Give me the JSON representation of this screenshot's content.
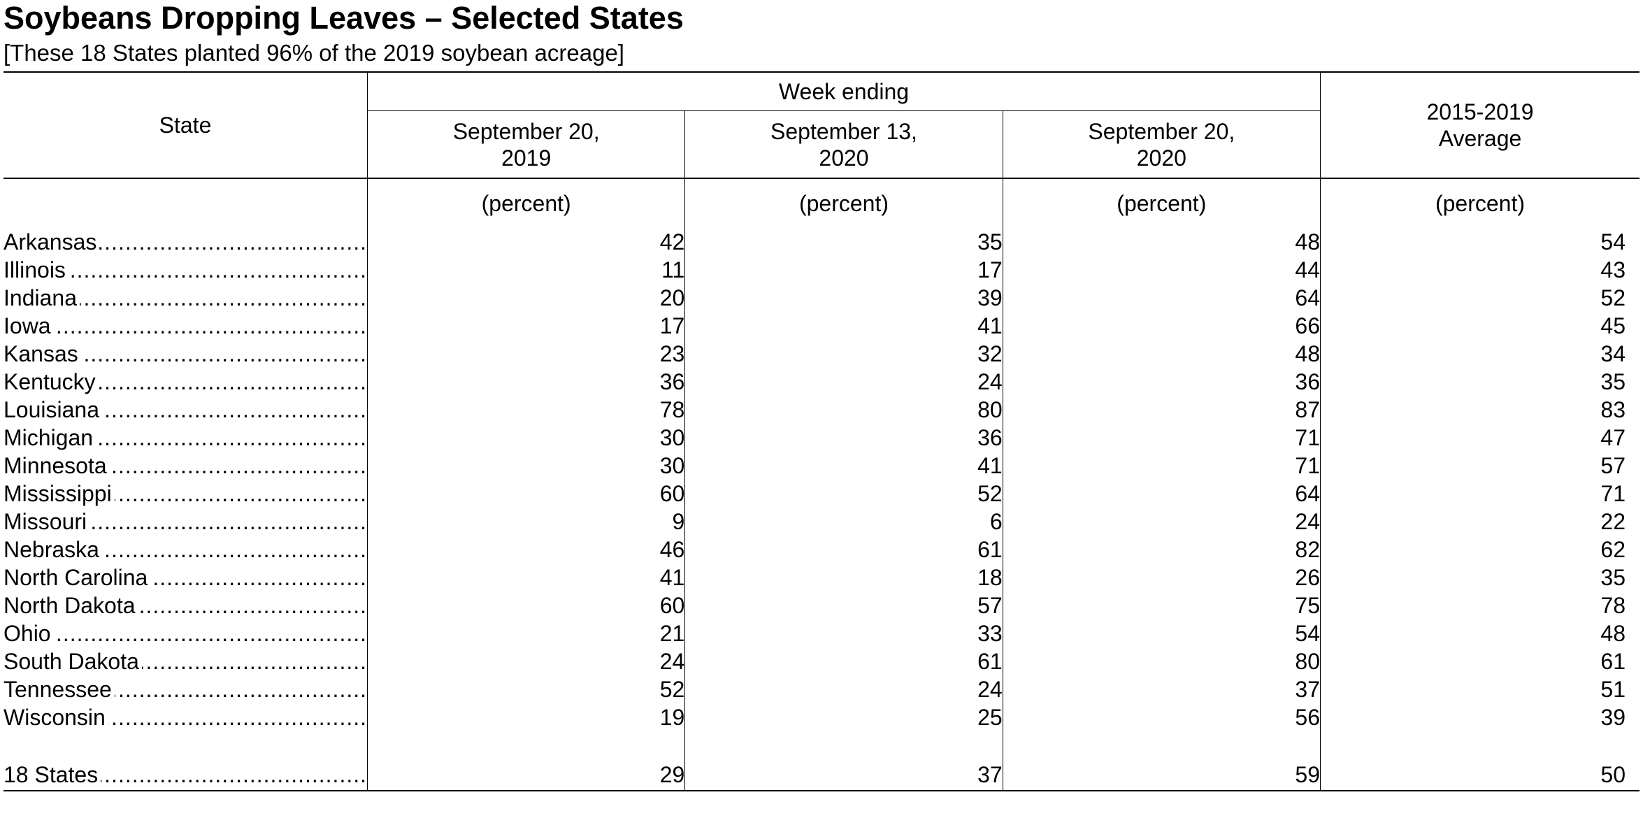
{
  "title": "Soybeans Dropping Leaves – Selected States",
  "subtitle": "[These 18 States planted 96% of the 2019 soybean acreage]",
  "header": {
    "state": "State",
    "week_ending": "Week ending",
    "col1_line1": "September 20,",
    "col1_line2": "2019",
    "col2_line1": "September 13,",
    "col2_line2": "2020",
    "col3_line1": "September 20,",
    "col3_line2": "2020",
    "avg_line1": "2015-2019",
    "avg_line2": "Average",
    "unit": "(percent)"
  },
  "leader_dots": "...........................................................................................",
  "rows": [
    {
      "state": "Arkansas",
      "v2019": "42",
      "v2020a": "35",
      "v2020b": "48",
      "avg": "54"
    },
    {
      "state": "Illinois",
      "v2019": "11",
      "v2020a": "17",
      "v2020b": "44",
      "avg": "43"
    },
    {
      "state": "Indiana",
      "v2019": "20",
      "v2020a": "39",
      "v2020b": "64",
      "avg": "52"
    },
    {
      "state": "Iowa",
      "v2019": "17",
      "v2020a": "41",
      "v2020b": "66",
      "avg": "45"
    },
    {
      "state": "Kansas",
      "v2019": "23",
      "v2020a": "32",
      "v2020b": "48",
      "avg": "34"
    },
    {
      "state": "Kentucky",
      "v2019": "36",
      "v2020a": "24",
      "v2020b": "36",
      "avg": "35"
    },
    {
      "state": "Louisiana",
      "v2019": "78",
      "v2020a": "80",
      "v2020b": "87",
      "avg": "83"
    },
    {
      "state": "Michigan",
      "v2019": "30",
      "v2020a": "36",
      "v2020b": "71",
      "avg": "47"
    },
    {
      "state": "Minnesota",
      "v2019": "30",
      "v2020a": "41",
      "v2020b": "71",
      "avg": "57"
    },
    {
      "state": "Mississippi",
      "v2019": "60",
      "v2020a": "52",
      "v2020b": "64",
      "avg": "71"
    },
    {
      "state": "Missouri",
      "v2019": "9",
      "v2020a": "6",
      "v2020b": "24",
      "avg": "22"
    },
    {
      "state": "Nebraska",
      "v2019": "46",
      "v2020a": "61",
      "v2020b": "82",
      "avg": "62"
    },
    {
      "state": "North Carolina",
      "v2019": "41",
      "v2020a": "18",
      "v2020b": "26",
      "avg": "35"
    },
    {
      "state": "North Dakota",
      "v2019": "60",
      "v2020a": "57",
      "v2020b": "75",
      "avg": "78"
    },
    {
      "state": "Ohio",
      "v2019": "21",
      "v2020a": "33",
      "v2020b": "54",
      "avg": "48"
    },
    {
      "state": "South Dakota",
      "v2019": "24",
      "v2020a": "61",
      "v2020b": "80",
      "avg": "61"
    },
    {
      "state": "Tennessee",
      "v2019": "52",
      "v2020a": "24",
      "v2020b": "37",
      "avg": "51"
    },
    {
      "state": "Wisconsin",
      "v2019": "19",
      "v2020a": "25",
      "v2020b": "56",
      "avg": "39"
    }
  ],
  "total": {
    "state": "18 States",
    "v2019": "29",
    "v2020a": "37",
    "v2020b": "59",
    "avg": "50"
  }
}
